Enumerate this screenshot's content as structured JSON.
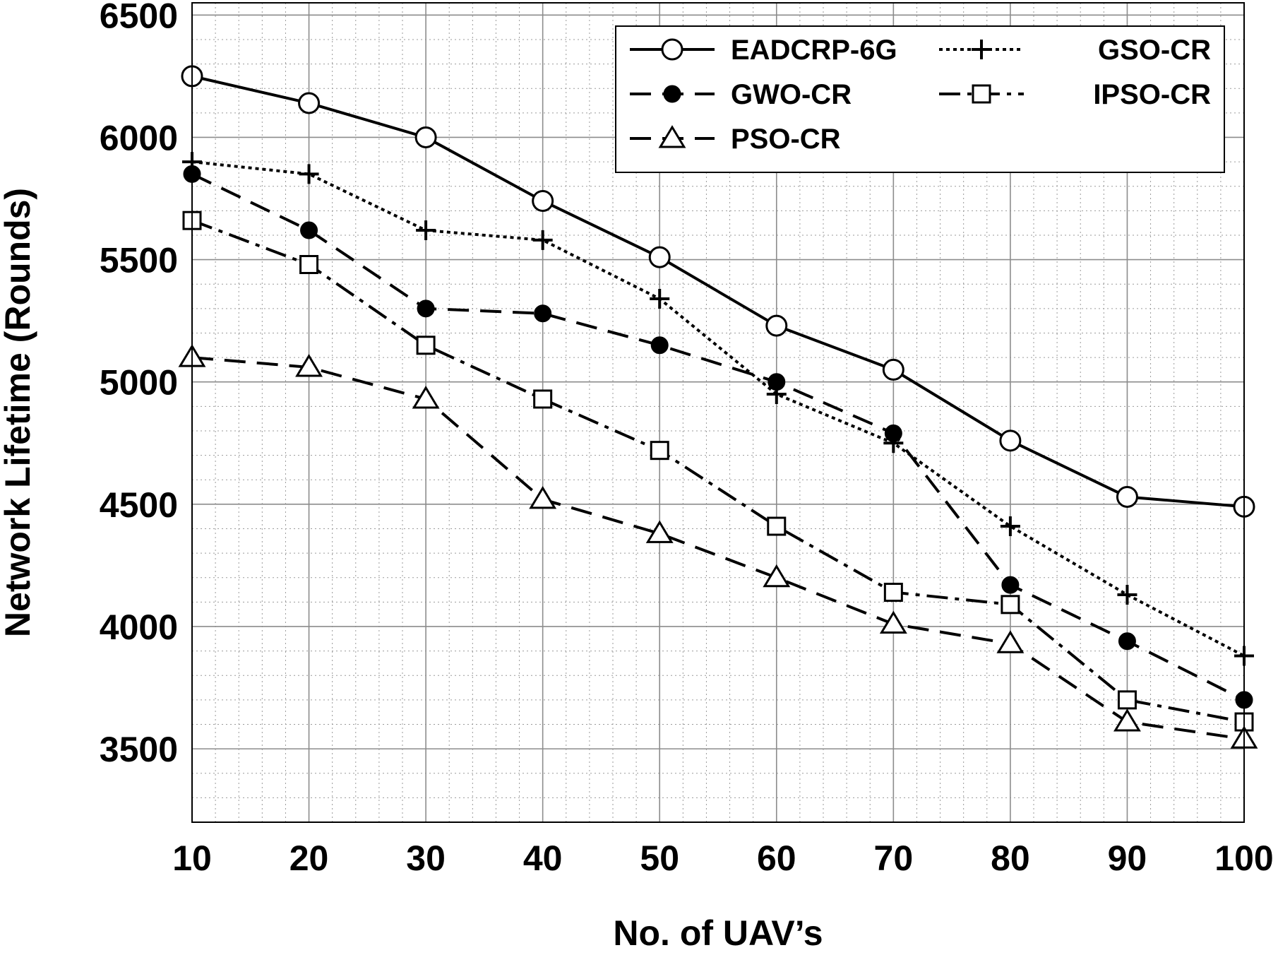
{
  "chart_data": {
    "type": "line",
    "title": "",
    "xlabel": "No. of UAV’s",
    "ylabel": "Network Lifetime (Rounds)",
    "x": [
      10,
      20,
      30,
      40,
      50,
      60,
      70,
      80,
      90,
      100
    ],
    "xlim": [
      10,
      100
    ],
    "ylim": [
      3200,
      6550
    ],
    "xticks": [
      "10",
      "20",
      "30",
      "40",
      "50",
      "60",
      "70",
      "80",
      "90",
      "100"
    ],
    "yticks": [
      "3500",
      "4000",
      "4500",
      "5000",
      "5500",
      "6000",
      "6500"
    ],
    "grid": true,
    "legend_position": "top-right",
    "series": [
      {
        "name": "EADCRP-6G",
        "values": [
          6250,
          6140,
          6000,
          5740,
          5510,
          5230,
          5050,
          4760,
          4530,
          4490
        ],
        "style": "solid",
        "marker": "circle-open"
      },
      {
        "name": "GSO-CR",
        "values": [
          5900,
          5850,
          5620,
          5580,
          5340,
          4950,
          4750,
          4410,
          4130,
          3880
        ],
        "style": "dotted",
        "marker": "plus"
      },
      {
        "name": "GWO-CR",
        "values": [
          5850,
          5620,
          5300,
          5280,
          5150,
          5000,
          4790,
          4170,
          3940,
          3700
        ],
        "style": "dashed",
        "marker": "circle-filled"
      },
      {
        "name": "IPSO-CR",
        "values": [
          5660,
          5480,
          5150,
          4930,
          4720,
          4410,
          4140,
          4090,
          3700,
          3610
        ],
        "style": "dashdot",
        "marker": "square-open"
      },
      {
        "name": "PSO-CR",
        "values": [
          5100,
          5060,
          4930,
          4520,
          4380,
          4200,
          4010,
          3930,
          3610,
          3540
        ],
        "style": "dashed",
        "marker": "triangle-open"
      }
    ]
  }
}
